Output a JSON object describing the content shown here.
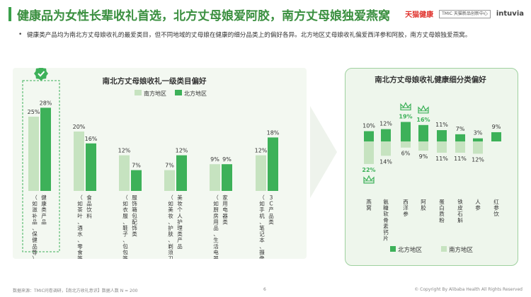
{
  "page": {
    "title": "健康品为女性长辈收礼首选，北方丈母娘爱阿胶，南方丈母娘独爱燕窝",
    "description": "健康类产品均为南北方丈母娘收礼的最爱类目，但不同地域的丈母娘在健康的细分品类上的偏好各异。北方地区丈母娘收礼偏爱西洋参和阿胶，南方丈母娘独爱燕窝。",
    "logos": {
      "tmall_health": "天猫健康",
      "tmic": "TMIC 天猫新品创新中心",
      "intuvia": "intuvia"
    },
    "footer_source": "数据来源：TMIC问卷调研，【南北方收礼意识】数据人数 N = 200",
    "page_number": "6",
    "copyright": "© Copyright By Alibaba Health All Rights Reserved",
    "colors": {
      "south": "#c6e3c0",
      "north": "#3db159",
      "title": "#3a8f3f"
    }
  },
  "chart_data": [
    {
      "type": "bar",
      "title": "南北方丈母娘收礼一级类目偏好",
      "legend_position": "top-right",
      "categories": [
        "健康类产品（如滋补品、保健品等）",
        "食品饮料（如茶叶、酒水、零食等）",
        "服饰箱包配饰类（如衣服、鞋子、包包等）",
        "美妆个人护理类产品（如美妆、护肤、剃须刀、香薰等）",
        "家用电器类（如厨房用品、生活电器等）",
        "3C产品类（如手机、笔记本、摄像机等）"
      ],
      "series": [
        {
          "name": "南方地区",
          "values": [
            25,
            20,
            12,
            7,
            9,
            12
          ]
        },
        {
          "name": "北方地区",
          "values": [
            28,
            16,
            7,
            12,
            9,
            18
          ]
        }
      ],
      "value_labels": {
        "南方地区": [
          "25%",
          "20%",
          "12%",
          "7%",
          "9%",
          "12%"
        ],
        "北方地区": [
          "28%",
          "16%",
          "7%",
          "12%",
          "9%",
          "18%"
        ]
      },
      "highlight": {
        "category": "健康类产品（如滋补品、保健品等）",
        "icon": "check-badge-icon"
      }
    },
    {
      "type": "bar",
      "title": "南北方丈母娘收礼健康细分类偏好",
      "legend_position": "bottom",
      "categories": [
        "燕窝",
        "氨糖软骨素钙片",
        "西洋参",
        "阿胶",
        "蛋白质粉",
        "铁皮石斛",
        "人参",
        "红参饮"
      ],
      "series": [
        {
          "name": "北方地区",
          "direction": "up",
          "values": [
            10,
            12,
            19,
            16,
            11,
            7,
            3,
            9
          ]
        },
        {
          "name": "南方地区",
          "direction": "down",
          "values": [
            22,
            14,
            6,
            9,
            11,
            11,
            12,
            0
          ]
        }
      ],
      "value_labels": {
        "北方地区": [
          "10%",
          "12%",
          "19%",
          "16%",
          "11%",
          "7%",
          "3%",
          "9%"
        ],
        "南方地区": [
          "22%",
          "14%",
          "6%",
          "9%",
          "11%",
          "11%",
          "12%",
          ""
        ]
      },
      "highlights": [
        {
          "category": "燕窝",
          "series": "南方地区",
          "icon": "crown-icon"
        },
        {
          "category": "西洋参",
          "series": "北方地区",
          "icon": "crown-icon"
        },
        {
          "category": "阿胶",
          "series": "北方地区",
          "icon": "crown-icon"
        }
      ]
    }
  ]
}
